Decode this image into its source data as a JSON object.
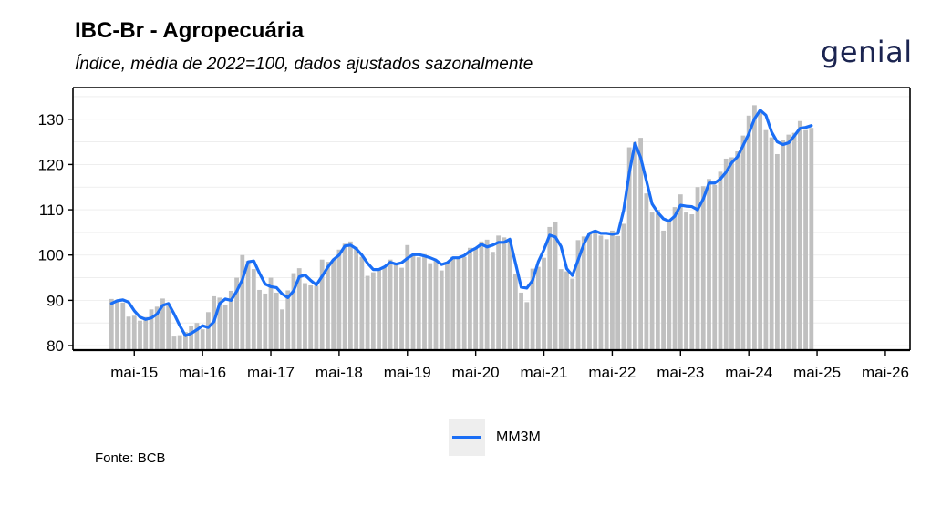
{
  "header": {
    "title": "IBC-Br - Agropecuária",
    "subtitle": "Índice, média de 2022=100, dados ajustados sazonalmente",
    "logo_text": "genial"
  },
  "footer": {
    "source": "Fonte: BCB"
  },
  "colors": {
    "bars": "#c0c0c0",
    "line": "#1a6ef5",
    "axis": "#000000",
    "grid": "#ebebeb"
  },
  "chart_data": {
    "type": "bar",
    "title": "IBC-Br - Agropecuária",
    "subtitle": "Índice, média de 2022=100, dados ajustados sazonalmente",
    "xlabel": "",
    "ylabel": "",
    "start_month": "2015-01",
    "ylim": [
      79,
      137
    ],
    "yticks": [
      80,
      90,
      100,
      110,
      120,
      130
    ],
    "xticks": [
      "mai-15",
      "mai-16",
      "mai-17",
      "mai-18",
      "mai-19",
      "mai-20",
      "mai-21",
      "mai-22",
      "mai-23",
      "mai-24",
      "mai-25",
      "mai-26"
    ],
    "grid": true,
    "legend_position": "bottom",
    "series": [
      {
        "name": "",
        "type": "bar",
        "values": [
          90.3,
          90.1,
          89.5,
          86.4,
          86.6,
          85.5,
          86.3,
          88.0,
          88.6,
          90.4,
          88.9,
          82.0,
          82.3,
          83.0,
          84.4,
          85.0,
          83.6,
          87.4,
          90.9,
          90.6,
          88.9,
          92.1,
          95.0,
          100.0,
          98.7,
          96.9,
          92.3,
          91.5,
          95.0,
          91.7,
          88.0,
          92.2,
          96.0,
          97.1,
          93.8,
          93.3,
          93.2,
          99.0,
          98.5,
          99.0,
          101.2,
          102.5,
          103.0,
          101.7,
          99.6,
          95.4,
          96.2,
          96.8,
          97.4,
          99.0,
          98.0,
          97.2,
          102.2,
          100.2,
          99.5,
          100.2,
          98.2,
          98.9,
          96.6,
          98.4,
          99.6,
          99.3,
          99.6,
          101.6,
          101.6,
          103.0,
          103.4,
          100.7,
          104.3,
          103.9,
          103.0,
          95.8,
          91.7,
          89.6,
          97.0,
          97.4,
          99.4,
          106.2,
          107.4,
          96.9,
          96.4,
          94.8,
          103.3,
          104.1,
          104.8,
          105.5,
          104.3,
          103.5,
          105.4,
          104.2,
          106.9,
          123.8,
          124.9,
          125.9,
          113.6,
          109.4,
          110.0,
          105.4,
          107.8,
          110.6,
          113.4,
          109.4,
          109.0,
          115.0,
          115.2,
          116.8,
          115.5,
          118.4,
          121.3,
          121.6,
          122.9,
          126.4,
          130.8,
          133.1,
          132.0,
          127.6,
          126.0,
          122.3,
          125.4,
          126.6,
          127.0,
          129.6,
          127.6,
          128.1
        ]
      },
      {
        "name": "MM3M",
        "type": "line",
        "values": [
          89.3,
          89.9,
          90.1,
          89.6,
          87.7,
          86.3,
          85.8,
          86.1,
          87.0,
          88.9,
          89.3,
          87.0,
          84.4,
          82.2,
          82.7,
          83.5,
          84.4,
          84.0,
          85.3,
          89.3,
          90.3,
          90.0,
          92.0,
          94.6,
          98.5,
          98.7,
          96.0,
          93.6,
          93.0,
          92.8,
          91.4,
          90.6,
          92.1,
          95.2,
          95.6,
          94.4,
          93.4,
          95.3,
          97.3,
          99.0,
          100.0,
          102.0,
          102.2,
          101.4,
          100.0,
          98.2,
          96.8,
          96.8,
          97.4,
          98.4,
          98.0,
          98.3,
          99.3,
          100.1,
          100.1,
          99.8,
          99.4,
          98.9,
          97.9,
          98.3,
          99.4,
          99.4,
          99.9,
          100.9,
          101.5,
          102.4,
          101.8,
          102.2,
          102.8,
          102.8,
          103.5,
          98.2,
          92.9,
          92.7,
          94.4,
          98.5,
          101.2,
          104.4,
          104.0,
          101.9,
          97.0,
          95.5,
          98.9,
          102.4,
          104.8,
          105.3,
          104.8,
          104.8,
          104.6,
          104.8,
          109.9,
          118.2,
          124.7,
          121.5,
          116.4,
          111.3,
          109.4,
          108.0,
          107.5,
          108.6,
          111.0,
          110.8,
          110.7,
          110.0,
          112.4,
          115.9,
          115.9,
          116.8,
          118.3,
          120.4,
          121.7,
          124.2,
          126.8,
          130.1,
          132.0,
          130.9,
          127.2,
          125.0,
          124.4,
          124.8,
          126.3,
          128.0,
          128.2,
          128.6
        ]
      }
    ]
  }
}
